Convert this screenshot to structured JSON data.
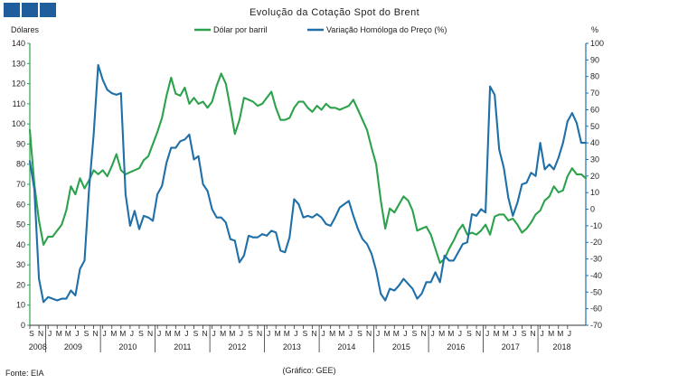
{
  "header": {
    "logo_blocks": 3,
    "logo_color": "#1f5d9c"
  },
  "chart_data": {
    "type": "line",
    "title": "Evolução da Cotação Spot do Brent",
    "ylabel_left": "Dólares",
    "ylabel_right": "%",
    "ylim_left": [
      0,
      140
    ],
    "ylim_right": [
      -70,
      100
    ],
    "yticks_left": [
      0,
      10,
      20,
      30,
      40,
      50,
      60,
      70,
      80,
      90,
      100,
      110,
      120,
      130,
      140
    ],
    "yticks_right": [
      -70,
      -60,
      -50,
      -40,
      -30,
      -20,
      -10,
      0,
      10,
      20,
      30,
      40,
      50,
      60,
      70,
      80,
      90,
      100
    ],
    "month_labels": [
      "S",
      "N",
      "J",
      "M",
      "M",
      "J",
      "S",
      "N",
      "J",
      "M",
      "M",
      "J",
      "S",
      "N",
      "J",
      "M",
      "M",
      "J",
      "S",
      "N",
      "J",
      "M",
      "M",
      "J",
      "S",
      "N",
      "J",
      "M",
      "M",
      "J",
      "S",
      "N",
      "J",
      "M",
      "M",
      "J",
      "S",
      "N",
      "J",
      "M",
      "M",
      "J",
      "S",
      "N",
      "J",
      "M",
      "M",
      "J",
      "S",
      "N",
      "J",
      "M",
      "M",
      "J",
      "S",
      "N",
      "J",
      "M",
      "M",
      "J"
    ],
    "year_labels": [
      "2008",
      "2009",
      "2010",
      "2011",
      "2012",
      "2013",
      "2014",
      "2015",
      "2016",
      "2017",
      "2018"
    ],
    "start_month": "2008-09",
    "series": [
      {
        "name": "Dólar por barril",
        "axis": "left",
        "color": "#2ca24c",
        "values": [
          97,
          70,
          52,
          40,
          44,
          44,
          47,
          50,
          57,
          69,
          65,
          73,
          68,
          72,
          77,
          75,
          77,
          74,
          79,
          85,
          77,
          75,
          76,
          77,
          78,
          82,
          84,
          90,
          96,
          103,
          114,
          123,
          115,
          114,
          118,
          110,
          113,
          110,
          111,
          108,
          111,
          119,
          125,
          120,
          108,
          95,
          102,
          113,
          112,
          111,
          109,
          110,
          113,
          116,
          108,
          102,
          102,
          103,
          108,
          111,
          111,
          108,
          106,
          109,
          107,
          110,
          108,
          108,
          107,
          108,
          109,
          112,
          107,
          102,
          97,
          88,
          80,
          62,
          48,
          58,
          56,
          60,
          64,
          62,
          57,
          47,
          48,
          49,
          45,
          38,
          31,
          33,
          38,
          42,
          47,
          50,
          45,
          46,
          45,
          47,
          50,
          45,
          54,
          55,
          55,
          52,
          53,
          50,
          46,
          48,
          51,
          55,
          57,
          62,
          64,
          69,
          66,
          67,
          74,
          78,
          75,
          75,
          73
        ]
      },
      {
        "name": "Variação Homóloga do Preço (%)",
        "axis": "right",
        "color": "#1f6fa8",
        "values": [
          29,
          12,
          -42,
          -56,
          -53,
          -54,
          -55,
          -54,
          -54,
          -49,
          -52,
          -36,
          -31,
          12,
          45,
          87,
          78,
          72,
          70,
          69,
          70,
          9,
          -10,
          -1,
          -12,
          -4,
          -5,
          -7,
          9,
          14,
          28,
          37,
          37,
          41,
          42,
          45,
          30,
          32,
          15,
          11,
          0,
          -5,
          -5,
          -8,
          -18,
          -19,
          -32,
          -28,
          -16,
          -17,
          -17,
          -15,
          -16,
          -13,
          -14,
          -25,
          -26,
          -17,
          6,
          3,
          -5,
          -4,
          -5,
          -3,
          -5,
          -9,
          -10,
          -5,
          1,
          3,
          5,
          -4,
          -12,
          -18,
          -21,
          -27,
          -37,
          -51,
          -55,
          -48,
          -49,
          -46,
          -42,
          -45,
          -48,
          -54,
          -51,
          -44,
          -44,
          -38,
          -44,
          -28,
          -31,
          -31,
          -26,
          -21,
          -20,
          -3,
          -4,
          0,
          -2,
          74,
          69,
          36,
          25,
          7,
          -4,
          4,
          15,
          16,
          22,
          20,
          40,
          24,
          27,
          24,
          31,
          40,
          53,
          58,
          52,
          40,
          40
        ]
      }
    ]
  },
  "footer": {
    "source": "Fonte: EIA",
    "credit": "(Gráfico: GEE)"
  }
}
